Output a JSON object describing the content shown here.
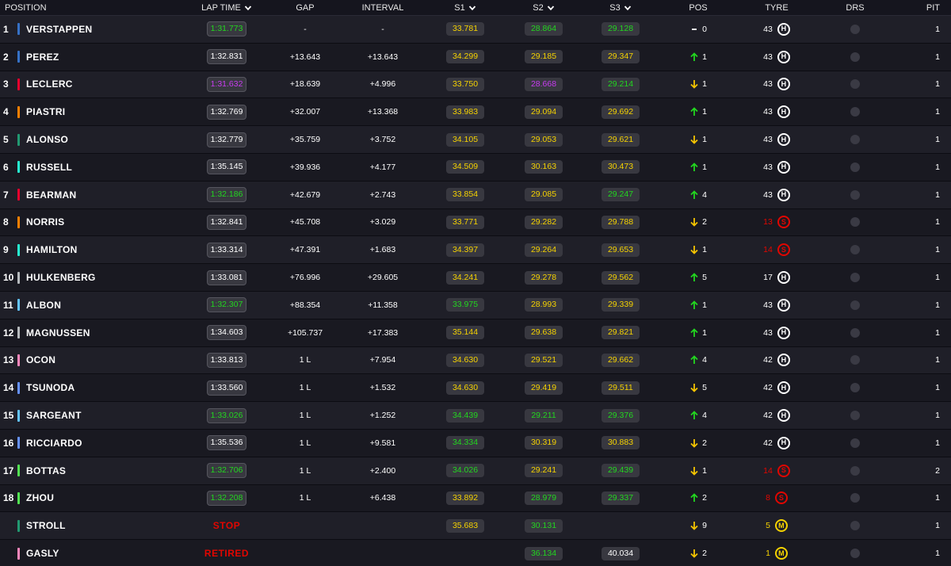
{
  "header": {
    "position": "POSITION",
    "lap_time": "LAP TIME",
    "gap": "GAP",
    "interval": "INTERVAL",
    "s1": "S1",
    "s2": "S2",
    "s3": "S3",
    "pos": "POS",
    "tyre": "TYRE",
    "drs": "DRS",
    "pit": "PIT"
  },
  "colors": {
    "green": "#22d61f",
    "purple": "#c83cf0",
    "yellow": "#f5d200",
    "white": "#ffffff",
    "up": "#22d61f",
    "down": "#f5c400",
    "soft": "#e10600",
    "medium": "#f5d200",
    "hard": "#ffffff"
  },
  "rows": [
    {
      "pos": "1",
      "name": "VERSTAPPEN",
      "team": "#3671c6",
      "lap": "1:31.773",
      "lap_c": "green",
      "gap": "-",
      "int": "-",
      "s1": "33.781",
      "s1_c": "yellow",
      "s2": "28.864",
      "s2_c": "green",
      "s3": "29.128",
      "s3_c": "green",
      "mov": "none",
      "mov_n": "0",
      "laps": "43",
      "laps_c": "white",
      "tyre": "H",
      "drs": "off",
      "pit": "1"
    },
    {
      "pos": "2",
      "name": "PEREZ",
      "team": "#3671c6",
      "lap": "1:32.831",
      "lap_c": "white",
      "gap": "+13.643",
      "int": "+13.643",
      "s1": "34.299",
      "s1_c": "yellow",
      "s2": "29.185",
      "s2_c": "yellow",
      "s3": "29.347",
      "s3_c": "yellow",
      "mov": "up",
      "mov_n": "1",
      "laps": "43",
      "laps_c": "white",
      "tyre": "H",
      "drs": "off",
      "pit": "1"
    },
    {
      "pos": "3",
      "name": "LECLERC",
      "team": "#e8002d",
      "lap": "1:31.632",
      "lap_c": "purple",
      "gap": "+18.639",
      "int": "+4.996",
      "s1": "33.750",
      "s1_c": "yellow",
      "s2": "28.668",
      "s2_c": "purple",
      "s3": "29.214",
      "s3_c": "green",
      "mov": "down",
      "mov_n": "1",
      "laps": "43",
      "laps_c": "white",
      "tyre": "H",
      "drs": "off",
      "pit": "1"
    },
    {
      "pos": "4",
      "name": "PIASTRI",
      "team": "#ff8000",
      "lap": "1:32.769",
      "lap_c": "white",
      "gap": "+32.007",
      "int": "+13.368",
      "s1": "33.983",
      "s1_c": "yellow",
      "s2": "29.094",
      "s2_c": "yellow",
      "s3": "29.692",
      "s3_c": "yellow",
      "mov": "up",
      "mov_n": "1",
      "laps": "43",
      "laps_c": "white",
      "tyre": "H",
      "drs": "off",
      "pit": "1"
    },
    {
      "pos": "5",
      "name": "ALONSO",
      "team": "#229971",
      "lap": "1:32.779",
      "lap_c": "white",
      "gap": "+35.759",
      "int": "+3.752",
      "s1": "34.105",
      "s1_c": "yellow",
      "s2": "29.053",
      "s2_c": "yellow",
      "s3": "29.621",
      "s3_c": "yellow",
      "mov": "down",
      "mov_n": "1",
      "laps": "43",
      "laps_c": "white",
      "tyre": "H",
      "drs": "off",
      "pit": "1"
    },
    {
      "pos": "6",
      "name": "RUSSELL",
      "team": "#27f4d2",
      "lap": "1:35.145",
      "lap_c": "white",
      "gap": "+39.936",
      "int": "+4.177",
      "s1": "34.509",
      "s1_c": "yellow",
      "s2": "30.163",
      "s2_c": "yellow",
      "s3": "30.473",
      "s3_c": "yellow",
      "mov": "up",
      "mov_n": "1",
      "laps": "43",
      "laps_c": "white",
      "tyre": "H",
      "drs": "off",
      "pit": "1"
    },
    {
      "pos": "7",
      "name": "BEARMAN",
      "team": "#e8002d",
      "lap": "1:32.186",
      "lap_c": "green",
      "gap": "+42.679",
      "int": "+2.743",
      "s1": "33.854",
      "s1_c": "yellow",
      "s2": "29.085",
      "s2_c": "yellow",
      "s3": "29.247",
      "s3_c": "green",
      "mov": "up",
      "mov_n": "4",
      "laps": "43",
      "laps_c": "white",
      "tyre": "H",
      "drs": "off",
      "pit": "1"
    },
    {
      "pos": "8",
      "name": "NORRIS",
      "team": "#ff8000",
      "lap": "1:32.841",
      "lap_c": "white",
      "gap": "+45.708",
      "int": "+3.029",
      "s1": "33.771",
      "s1_c": "yellow",
      "s2": "29.282",
      "s2_c": "yellow",
      "s3": "29.788",
      "s3_c": "yellow",
      "mov": "down",
      "mov_n": "2",
      "laps": "13",
      "laps_c": "soft",
      "tyre": "S",
      "drs": "off",
      "pit": "1"
    },
    {
      "pos": "9",
      "name": "HAMILTON",
      "team": "#27f4d2",
      "lap": "1:33.314",
      "lap_c": "white",
      "gap": "+47.391",
      "int": "+1.683",
      "s1": "34.397",
      "s1_c": "yellow",
      "s2": "29.264",
      "s2_c": "yellow",
      "s3": "29.653",
      "s3_c": "yellow",
      "mov": "down",
      "mov_n": "1",
      "laps": "14",
      "laps_c": "soft",
      "tyre": "S",
      "drs": "off",
      "pit": "1"
    },
    {
      "pos": "10",
      "name": "HULKENBERG",
      "team": "#b6babd",
      "lap": "1:33.081",
      "lap_c": "white",
      "gap": "+76.996",
      "int": "+29.605",
      "s1": "34.241",
      "s1_c": "yellow",
      "s2": "29.278",
      "s2_c": "yellow",
      "s3": "29.562",
      "s3_c": "yellow",
      "mov": "up",
      "mov_n": "5",
      "laps": "17",
      "laps_c": "white",
      "tyre": "H",
      "drs": "off",
      "pit": "1"
    },
    {
      "pos": "11",
      "name": "ALBON",
      "team": "#64c4ff",
      "lap": "1:32.307",
      "lap_c": "green",
      "gap": "+88.354",
      "int": "+11.358",
      "s1": "33.975",
      "s1_c": "green",
      "s2": "28.993",
      "s2_c": "yellow",
      "s3": "29.339",
      "s3_c": "yellow",
      "mov": "up",
      "mov_n": "1",
      "laps": "43",
      "laps_c": "white",
      "tyre": "H",
      "drs": "off",
      "pit": "1"
    },
    {
      "pos": "12",
      "name": "MAGNUSSEN",
      "team": "#b6babd",
      "lap": "1:34.603",
      "lap_c": "white",
      "gap": "+105.737",
      "int": "+17.383",
      "s1": "35.144",
      "s1_c": "yellow",
      "s2": "29.638",
      "s2_c": "yellow",
      "s3": "29.821",
      "s3_c": "yellow",
      "mov": "up",
      "mov_n": "1",
      "laps": "43",
      "laps_c": "white",
      "tyre": "H",
      "drs": "off",
      "pit": "1"
    },
    {
      "pos": "13",
      "name": "OCON",
      "team": "#ff87bc",
      "lap": "1:33.813",
      "lap_c": "white",
      "gap": "1 L",
      "int": "+7.954",
      "s1": "34.630",
      "s1_c": "yellow",
      "s2": "29.521",
      "s2_c": "yellow",
      "s3": "29.662",
      "s3_c": "yellow",
      "mov": "up",
      "mov_n": "4",
      "laps": "42",
      "laps_c": "white",
      "tyre": "H",
      "drs": "off",
      "pit": "1"
    },
    {
      "pos": "14",
      "name": "TSUNODA",
      "team": "#6692ff",
      "lap": "1:33.560",
      "lap_c": "white",
      "gap": "1 L",
      "int": "+1.532",
      "s1": "34.630",
      "s1_c": "yellow",
      "s2": "29.419",
      "s2_c": "yellow",
      "s3": "29.511",
      "s3_c": "yellow",
      "mov": "down",
      "mov_n": "5",
      "laps": "42",
      "laps_c": "white",
      "tyre": "H",
      "drs": "off",
      "pit": "1"
    },
    {
      "pos": "15",
      "name": "SARGEANT",
      "team": "#64c4ff",
      "lap": "1:33.026",
      "lap_c": "green",
      "gap": "1 L",
      "int": "+1.252",
      "s1": "34.439",
      "s1_c": "green",
      "s2": "29.211",
      "s2_c": "green",
      "s3": "29.376",
      "s3_c": "green",
      "mov": "up",
      "mov_n": "4",
      "laps": "42",
      "laps_c": "white",
      "tyre": "H",
      "drs": "off",
      "pit": "1"
    },
    {
      "pos": "16",
      "name": "RICCIARDO",
      "team": "#6692ff",
      "lap": "1:35.536",
      "lap_c": "white",
      "gap": "1 L",
      "int": "+9.581",
      "s1": "34.334",
      "s1_c": "green",
      "s2": "30.319",
      "s2_c": "yellow",
      "s3": "30.883",
      "s3_c": "yellow",
      "mov": "down",
      "mov_n": "2",
      "laps": "42",
      "laps_c": "white",
      "tyre": "H",
      "drs": "off",
      "pit": "1"
    },
    {
      "pos": "17",
      "name": "BOTTAS",
      "team": "#52e252",
      "lap": "1:32.706",
      "lap_c": "green",
      "gap": "1 L",
      "int": "+2.400",
      "s1": "34.026",
      "s1_c": "green",
      "s2": "29.241",
      "s2_c": "yellow",
      "s3": "29.439",
      "s3_c": "green",
      "mov": "down",
      "mov_n": "1",
      "laps": "14",
      "laps_c": "soft",
      "tyre": "S",
      "drs": "off",
      "pit": "2"
    },
    {
      "pos": "18",
      "name": "ZHOU",
      "team": "#52e252",
      "lap": "1:32.208",
      "lap_c": "green",
      "gap": "1 L",
      "int": "+6.438",
      "s1": "33.892",
      "s1_c": "yellow",
      "s2": "28.979",
      "s2_c": "green",
      "s3": "29.337",
      "s3_c": "green",
      "mov": "up",
      "mov_n": "2",
      "laps": "8",
      "laps_c": "soft",
      "tyre": "S",
      "drs": "off",
      "pit": "1"
    },
    {
      "pos": "",
      "name": "STROLL",
      "team": "#229971",
      "status": "STOP",
      "gap": "",
      "int": "",
      "s1": "35.683",
      "s1_c": "yellow",
      "s2": "30.131",
      "s2_c": "green",
      "s3": "",
      "s3_c": "white",
      "mov": "down",
      "mov_n": "9",
      "laps": "5",
      "laps_c": "medium",
      "tyre": "M",
      "drs": "off",
      "pit": "1"
    },
    {
      "pos": "",
      "name": "GASLY",
      "team": "#ff87bc",
      "status": "RETIRED",
      "gap": "",
      "int": "",
      "s1": "",
      "s1_c": "white",
      "s2": "36.134",
      "s2_c": "green",
      "s3": "40.034",
      "s3_c": "white",
      "mov": "down",
      "mov_n": "2",
      "laps": "1",
      "laps_c": "medium",
      "tyre": "M",
      "drs": "off",
      "pit": "1"
    }
  ]
}
